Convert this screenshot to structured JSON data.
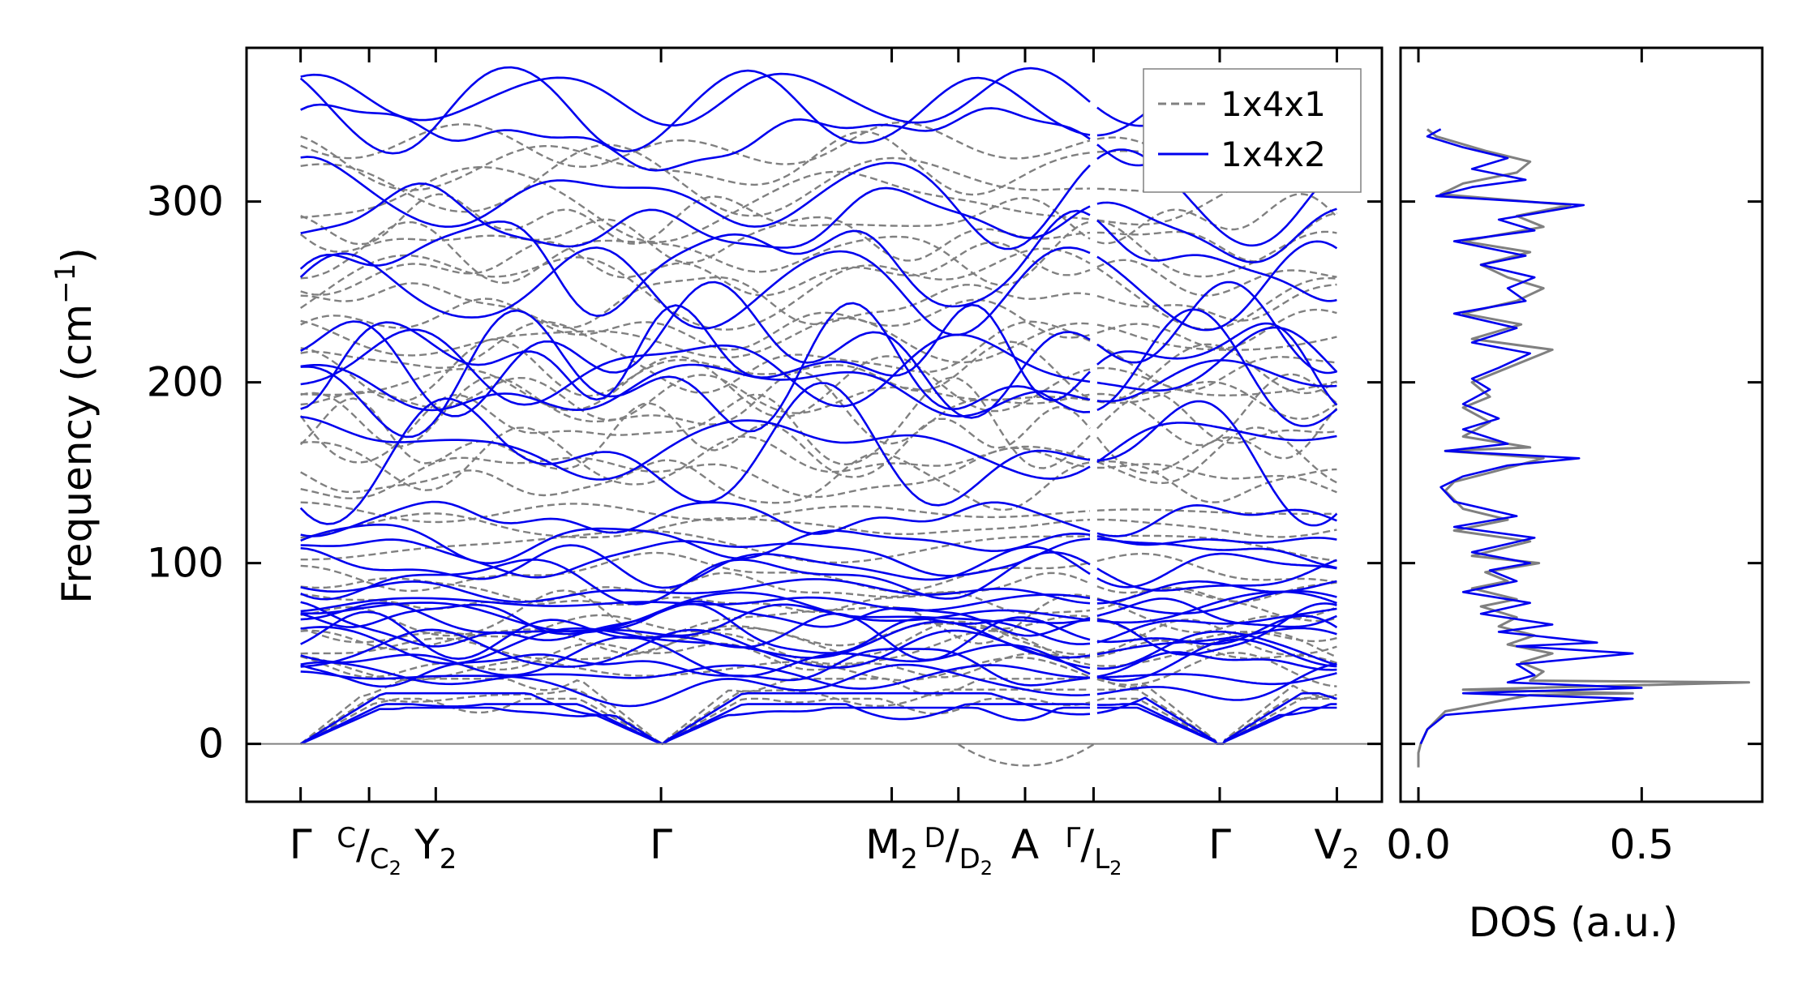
{
  "chart_data": [
    {
      "type": "line",
      "panel": "phonon band structure",
      "ylabel": "Frequency (cm",
      "ylabel_sup": "−1",
      "ylabel_close": ")",
      "ylim": [
        -32,
        385
      ],
      "yticks": [
        0,
        100,
        200,
        300
      ],
      "xlim": [
        -0.3,
        6.0
      ],
      "xticks": [
        {
          "x": 0.0,
          "main": "Γ"
        },
        {
          "x": 0.38,
          "pre": "C",
          "main": "/",
          "sub": "C",
          "sub2": "2"
        },
        {
          "x": 0.75,
          "main": "Y",
          "sub": "2"
        },
        {
          "x": 2.0,
          "main": "Γ"
        },
        {
          "x": 3.28,
          "main": "M",
          "sub": "2"
        },
        {
          "x": 3.65,
          "pre": "D",
          "main": "/",
          "sub": "D",
          "sub2": "2"
        },
        {
          "x": 4.02,
          "main": "A"
        },
        {
          "x": 4.4,
          "pre": "Γ",
          "main": "/",
          "sub": "L",
          "sub2": "2"
        },
        {
          "x": 5.1,
          "main": "Γ"
        },
        {
          "x": 5.75,
          "main": "V",
          "sub": "2"
        }
      ],
      "path_break_at": 4.4,
      "zero_line": 0,
      "legend": {
        "position": "top-right",
        "entries": [
          "1x4x1",
          "1x4x2"
        ]
      },
      "series": [
        {
          "name": "1x4x1",
          "style": "dashed",
          "color": "#808080",
          "acoustic_branch_max": 30,
          "segment_endpoints_approx": [
            25,
            30,
            36,
            41,
            47,
            52,
            58,
            63,
            70,
            78,
            86,
            95,
            110,
            120,
            128,
            145,
            150,
            157,
            167,
            176,
            185,
            192,
            198,
            206,
            213,
            223,
            232,
            245,
            254,
            262,
            271,
            280,
            290,
            300,
            311,
            320,
            330
          ],
          "negative_region": {
            "x_range": [
              3.65,
              4.4
            ],
            "min": -12
          }
        },
        {
          "name": "1x4x2",
          "style": "solid",
          "color": "#0000ee",
          "branch_endpoints_approx": [
            0,
            22,
            28,
            33,
            38,
            43,
            47,
            52,
            56,
            60,
            63,
            67,
            70,
            73,
            78,
            85,
            92,
            98,
            105,
            112,
            125,
            160,
            165,
            197,
            203,
            208,
            214,
            218,
            252,
            268,
            288,
            302,
            336,
            351,
            357
          ]
        }
      ]
    },
    {
      "type": "line",
      "panel": "density of states",
      "xlabel": "DOS (a.u.)",
      "xlim": [
        -0.04,
        0.77
      ],
      "xticks": [
        0.0,
        0.5
      ],
      "xtick_labels": [
        "0.0",
        "0.5"
      ],
      "ylim": [
        -32,
        385
      ],
      "series": [
        {
          "name": "1x4x1",
          "color": "#808080",
          "points": [
            [
              0.0,
              -13
            ],
            [
              0.0,
              -5
            ],
            [
              0.005,
              0
            ],
            [
              0.02,
              8
            ],
            [
              0.06,
              18
            ],
            [
              0.25,
              27
            ],
            [
              0.48,
              28
            ],
            [
              0.1,
              30
            ],
            [
              0.74,
              34
            ],
            [
              0.25,
              35
            ],
            [
              0.28,
              40
            ],
            [
              0.23,
              45
            ],
            [
              0.3,
              50
            ],
            [
              0.2,
              55
            ],
            [
              0.26,
              60
            ],
            [
              0.18,
              65
            ],
            [
              0.22,
              70
            ],
            [
              0.14,
              76
            ],
            [
              0.22,
              80
            ],
            [
              0.12,
              86
            ],
            [
              0.2,
              90
            ],
            [
              0.15,
              95
            ],
            [
              0.27,
              100
            ],
            [
              0.12,
              104
            ],
            [
              0.25,
              112
            ],
            [
              0.08,
              118
            ],
            [
              0.2,
              124
            ],
            [
              0.1,
              130
            ],
            [
              0.06,
              140
            ],
            [
              0.08,
              145
            ],
            [
              0.16,
              150
            ],
            [
              0.28,
              158
            ],
            [
              0.06,
              162
            ],
            [
              0.25,
              164
            ],
            [
              0.1,
              170
            ],
            [
              0.16,
              178
            ],
            [
              0.1,
              186
            ],
            [
              0.16,
              192
            ],
            [
              0.12,
              200
            ],
            [
              0.18,
              206
            ],
            [
              0.3,
              218
            ],
            [
              0.12,
              224
            ],
            [
              0.23,
              232
            ],
            [
              0.1,
              238
            ],
            [
              0.22,
              245
            ],
            [
              0.28,
              252
            ],
            [
              0.2,
              258
            ],
            [
              0.14,
              265
            ],
            [
              0.25,
              272
            ],
            [
              0.1,
              278
            ],
            [
              0.28,
              286
            ],
            [
              0.22,
              292
            ],
            [
              0.34,
              298
            ],
            [
              0.05,
              304
            ],
            [
              0.1,
              310
            ],
            [
              0.22,
              316
            ],
            [
              0.25,
              322
            ],
            [
              0.15,
              328
            ],
            [
              0.04,
              336
            ],
            [
              0.02,
              340
            ]
          ]
        },
        {
          "name": "1x4x2",
          "color": "#0000ee",
          "points": [
            [
              0.005,
              0
            ],
            [
              0.02,
              8
            ],
            [
              0.06,
              16
            ],
            [
              0.48,
              25
            ],
            [
              0.1,
              28
            ],
            [
              0.5,
              31
            ],
            [
              0.2,
              34
            ],
            [
              0.26,
              38
            ],
            [
              0.22,
              44
            ],
            [
              0.48,
              50
            ],
            [
              0.22,
              54
            ],
            [
              0.4,
              56
            ],
            [
              0.18,
              62
            ],
            [
              0.3,
              66
            ],
            [
              0.14,
              72
            ],
            [
              0.25,
              78
            ],
            [
              0.1,
              84
            ],
            [
              0.22,
              90
            ],
            [
              0.16,
              96
            ],
            [
              0.25,
              100
            ],
            [
              0.12,
              106
            ],
            [
              0.26,
              114
            ],
            [
              0.08,
              120
            ],
            [
              0.22,
              126
            ],
            [
              0.08,
              134
            ],
            [
              0.05,
              142
            ],
            [
              0.1,
              148
            ],
            [
              0.2,
              154
            ],
            [
              0.36,
              158
            ],
            [
              0.06,
              162
            ],
            [
              0.2,
              166
            ],
            [
              0.1,
              174
            ],
            [
              0.18,
              180
            ],
            [
              0.1,
              188
            ],
            [
              0.16,
              196
            ],
            [
              0.12,
              202
            ],
            [
              0.18,
              208
            ],
            [
              0.25,
              216
            ],
            [
              0.12,
              222
            ],
            [
              0.22,
              230
            ],
            [
              0.08,
              238
            ],
            [
              0.24,
              245
            ],
            [
              0.2,
              252
            ],
            [
              0.26,
              258
            ],
            [
              0.14,
              265
            ],
            [
              0.24,
              270
            ],
            [
              0.08,
              278
            ],
            [
              0.26,
              284
            ],
            [
              0.18,
              290
            ],
            [
              0.37,
              298
            ],
            [
              0.04,
              303
            ],
            [
              0.12,
              308
            ],
            [
              0.24,
              312
            ],
            [
              0.12,
              318
            ],
            [
              0.2,
              324
            ],
            [
              0.1,
              330
            ],
            [
              0.02,
              336
            ],
            [
              0.05,
              340
            ]
          ]
        }
      ]
    }
  ]
}
